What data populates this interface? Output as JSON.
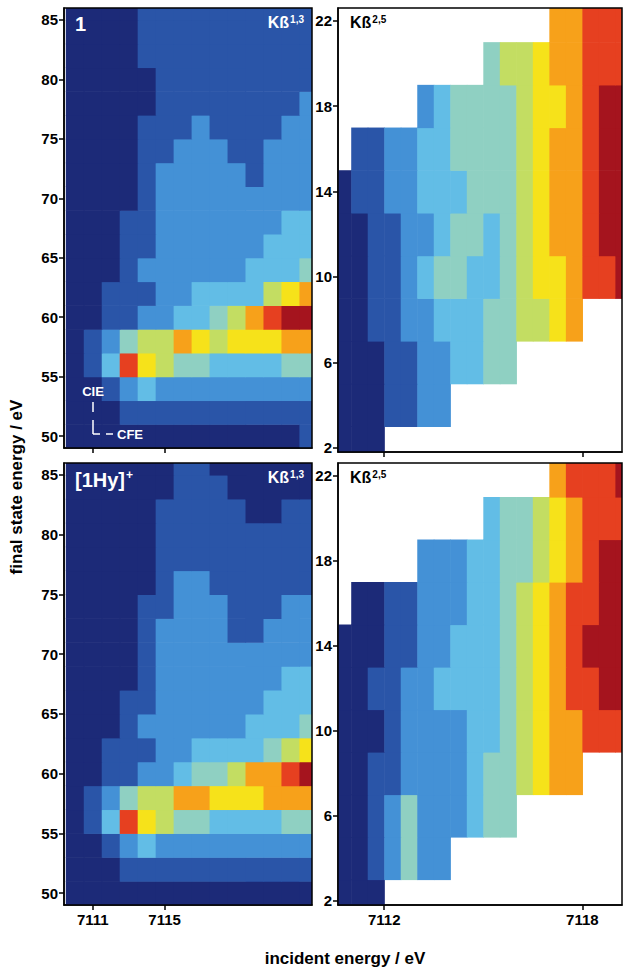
{
  "xlabel": "incident energy / eV",
  "ylabel": "final state energy / eV",
  "chart_data": [
    {
      "type": "heatmap",
      "title": {
        "text": "1"
      },
      "label": {
        "text": "Kß",
        "superscript": "1,3"
      },
      "annotations": [
        {
          "text": "CIE"
        },
        {
          "text": "CFE"
        }
      ],
      "tick_labels": "y",
      "xlim": [
        7109.4,
        7123.2
      ],
      "xticks": [
        7111,
        7115
      ],
      "ylim": [
        49,
        86
      ],
      "yticks": [
        50,
        55,
        60,
        65,
        70,
        75,
        80,
        85
      ],
      "x": [
        7110,
        7111,
        7112,
        7113,
        7114,
        7115,
        7116,
        7117,
        7118,
        7119,
        7120,
        7121,
        7122,
        7123
      ],
      "y": [
        50,
        52,
        54,
        56,
        58,
        60,
        62,
        64,
        66,
        68,
        70,
        72,
        74,
        76,
        78,
        80,
        82,
        84,
        86
      ],
      "cells": [
        [
          1,
          1,
          1,
          1,
          1,
          1,
          1,
          1,
          1,
          1,
          1,
          1,
          1,
          2
        ],
        [
          1,
          1,
          1,
          2,
          2,
          2,
          2,
          2,
          2,
          2,
          2,
          2,
          2,
          2
        ],
        [
          1,
          1,
          2,
          3,
          4,
          3,
          3,
          3,
          3,
          3,
          3,
          3,
          3,
          3
        ],
        [
          1,
          2,
          4,
          9,
          7,
          6,
          5,
          5,
          4,
          4,
          4,
          4,
          5,
          5
        ],
        [
          1,
          2,
          3,
          5,
          6,
          6,
          8,
          7,
          6,
          7,
          7,
          7,
          8,
          8
        ],
        [
          1,
          1,
          2,
          2,
          3,
          3,
          4,
          4,
          5,
          6,
          8,
          9,
          10,
          10
        ],
        [
          1,
          1,
          2,
          2,
          2,
          3,
          3,
          4,
          4,
          4,
          4,
          6,
          7,
          8
        ],
        [
          1,
          1,
          1,
          2,
          3,
          3,
          3,
          3,
          3,
          3,
          4,
          4,
          4,
          5
        ],
        [
          1,
          1,
          1,
          2,
          2,
          3,
          3,
          3,
          3,
          3,
          3,
          4,
          4,
          4
        ],
        [
          1,
          1,
          1,
          2,
          2,
          3,
          3,
          3,
          3,
          3,
          3,
          3,
          4,
          4
        ],
        [
          1,
          1,
          1,
          1,
          2,
          3,
          3,
          3,
          3,
          3,
          3,
          3,
          3,
          3
        ],
        [
          1,
          1,
          1,
          1,
          2,
          3,
          3,
          3,
          3,
          3,
          2,
          3,
          3,
          3
        ],
        [
          1,
          1,
          1,
          1,
          2,
          2,
          3,
          3,
          3,
          2,
          2,
          3,
          3,
          3
        ],
        [
          1,
          1,
          1,
          1,
          2,
          2,
          2,
          3,
          2,
          2,
          2,
          2,
          3,
          3
        ],
        [
          1,
          1,
          1,
          1,
          1,
          2,
          2,
          2,
          2,
          2,
          2,
          2,
          2,
          3
        ],
        [
          1,
          1,
          1,
          1,
          1,
          2,
          2,
          2,
          2,
          2,
          2,
          2,
          2,
          2
        ],
        [
          1,
          1,
          1,
          1,
          2,
          2,
          2,
          2,
          2,
          2,
          2,
          2,
          2,
          2
        ],
        [
          1,
          1,
          1,
          1,
          2,
          2,
          2,
          2,
          2,
          2,
          2,
          2,
          2,
          2
        ],
        [
          1,
          1,
          1,
          1,
          2,
          2,
          2,
          2,
          2,
          2,
          2,
          2,
          2,
          2
        ]
      ]
    },
    {
      "type": "heatmap",
      "label": {
        "text": "Kß",
        "superscript": "2,5"
      },
      "tick_labels": "y",
      "xlim": [
        7110.6,
        7119.2
      ],
      "xticks": [
        7112,
        7118
      ],
      "ylim": [
        1.8,
        22.6
      ],
      "yticks": [
        2,
        6,
        10,
        14,
        18,
        22
      ],
      "x": [
        7110.75,
        7111.25,
        7111.75,
        7112.25,
        7112.75,
        7113.25,
        7113.75,
        7114.25,
        7114.75,
        7115.25,
        7115.75,
        7116.25,
        7116.75,
        7117.25,
        7117.75,
        7118.25,
        7118.75,
        7119.25
      ],
      "y": [
        2,
        4,
        6,
        8,
        10,
        12,
        14,
        16,
        18,
        20,
        22
      ],
      "cells": [
        [
          1,
          1,
          1,
          null,
          null,
          null,
          null,
          null,
          null,
          null,
          null,
          null,
          null,
          null,
          null,
          null,
          null,
          null
        ],
        [
          1,
          1,
          1,
          2,
          2,
          3,
          3,
          null,
          null,
          null,
          null,
          null,
          null,
          null,
          null,
          null,
          null,
          null
        ],
        [
          1,
          1,
          1,
          2,
          2,
          3,
          3,
          4,
          4,
          5,
          5,
          null,
          null,
          null,
          null,
          null,
          null,
          null
        ],
        [
          1,
          1,
          2,
          2,
          3,
          3,
          4,
          4,
          4,
          5,
          5,
          6,
          6,
          7,
          8,
          null,
          null,
          null
        ],
        [
          1,
          1,
          2,
          2,
          3,
          4,
          5,
          5,
          4,
          4,
          5,
          6,
          7,
          7,
          8,
          9,
          9,
          10
        ],
        [
          1,
          1,
          2,
          2,
          3,
          3,
          4,
          5,
          5,
          4,
          5,
          6,
          7,
          8,
          8,
          9,
          10,
          10
        ],
        [
          1,
          2,
          2,
          3,
          3,
          4,
          4,
          4,
          5,
          5,
          5,
          6,
          7,
          8,
          8,
          9,
          10,
          10
        ],
        [
          null,
          2,
          2,
          3,
          3,
          4,
          4,
          5,
          5,
          5,
          5,
          6,
          7,
          8,
          8,
          9,
          10,
          10
        ],
        [
          null,
          null,
          null,
          null,
          null,
          3,
          4,
          5,
          5,
          5,
          5,
          6,
          7,
          7,
          8,
          9,
          10,
          10
        ],
        [
          null,
          null,
          null,
          null,
          null,
          null,
          null,
          null,
          null,
          5,
          6,
          6,
          7,
          8,
          8,
          9,
          9,
          9
        ],
        [
          null,
          null,
          null,
          null,
          null,
          null,
          null,
          null,
          null,
          null,
          null,
          null,
          null,
          8,
          8,
          9,
          9,
          9
        ]
      ]
    },
    {
      "type": "heatmap",
      "title": {
        "text": "[1Hy]",
        "superscript": "+"
      },
      "label": {
        "text": "Kß",
        "superscript": "1,3"
      },
      "xlim": [
        7109.4,
        7123.2
      ],
      "xticks": [
        7111,
        7115
      ],
      "ylim": [
        49,
        86
      ],
      "yticks": [
        50,
        55,
        60,
        65,
        70,
        75,
        80,
        85
      ],
      "x": [
        7110,
        7111,
        7112,
        7113,
        7114,
        7115,
        7116,
        7117,
        7118,
        7119,
        7120,
        7121,
        7122,
        7123
      ],
      "y": [
        50,
        52,
        54,
        56,
        58,
        60,
        62,
        64,
        66,
        68,
        70,
        72,
        74,
        76,
        78,
        80,
        82,
        84,
        86
      ],
      "cells": [
        [
          1,
          1,
          1,
          1,
          1,
          1,
          1,
          1,
          1,
          1,
          1,
          1,
          1,
          1
        ],
        [
          1,
          1,
          1,
          2,
          2,
          2,
          2,
          2,
          2,
          2,
          2,
          2,
          2,
          2
        ],
        [
          1,
          1,
          2,
          3,
          4,
          3,
          3,
          3,
          3,
          3,
          3,
          3,
          3,
          3
        ],
        [
          1,
          2,
          4,
          9,
          7,
          6,
          5,
          5,
          4,
          4,
          4,
          4,
          5,
          5
        ],
        [
          1,
          2,
          3,
          5,
          6,
          6,
          8,
          8,
          7,
          7,
          7,
          8,
          8,
          8
        ],
        [
          1,
          1,
          2,
          2,
          3,
          3,
          4,
          5,
          5,
          6,
          8,
          8,
          9,
          10
        ],
        [
          1,
          1,
          2,
          2,
          2,
          3,
          3,
          4,
          4,
          4,
          4,
          5,
          6,
          7
        ],
        [
          1,
          1,
          1,
          2,
          3,
          3,
          3,
          3,
          3,
          3,
          4,
          4,
          4,
          5
        ],
        [
          1,
          1,
          1,
          2,
          2,
          3,
          3,
          3,
          3,
          3,
          3,
          4,
          4,
          4
        ],
        [
          1,
          1,
          1,
          1,
          2,
          3,
          3,
          3,
          3,
          3,
          3,
          3,
          4,
          4
        ],
        [
          1,
          1,
          1,
          1,
          2,
          3,
          3,
          3,
          3,
          3,
          3,
          3,
          3,
          3
        ],
        [
          1,
          1,
          1,
          1,
          2,
          3,
          3,
          3,
          3,
          2,
          2,
          3,
          3,
          3
        ],
        [
          1,
          1,
          1,
          1,
          2,
          2,
          3,
          3,
          3,
          2,
          2,
          2,
          3,
          3
        ],
        [
          1,
          1,
          1,
          1,
          1,
          2,
          3,
          3,
          2,
          2,
          2,
          2,
          2,
          2
        ],
        [
          1,
          1,
          1,
          1,
          1,
          2,
          2,
          2,
          2,
          2,
          2,
          2,
          2,
          2
        ],
        [
          1,
          1,
          1,
          1,
          1,
          2,
          2,
          2,
          2,
          2,
          2,
          2,
          2,
          2
        ],
        [
          1,
          1,
          1,
          1,
          1,
          2,
          2,
          2,
          2,
          2,
          1,
          1,
          2,
          2
        ],
        [
          1,
          1,
          1,
          1,
          1,
          1,
          2,
          2,
          2,
          1,
          1,
          1,
          1,
          1
        ],
        [
          1,
          1,
          1,
          1,
          1,
          1,
          2,
          2,
          1,
          1,
          1,
          1,
          1,
          1
        ]
      ]
    },
    {
      "type": "heatmap",
      "label": {
        "text": "Kß",
        "superscript": "2,5"
      },
      "xlim": [
        7110.6,
        7119.2
      ],
      "xticks": [
        7112,
        7118
      ],
      "ylim": [
        1.8,
        22.6
      ],
      "yticks": [
        2,
        6,
        10,
        14,
        18,
        22
      ],
      "x": [
        7110.75,
        7111.25,
        7111.75,
        7112.25,
        7112.75,
        7113.25,
        7113.75,
        7114.25,
        7114.75,
        7115.25,
        7115.75,
        7116.25,
        7116.75,
        7117.25,
        7117.75,
        7118.25,
        7118.75,
        7119.25
      ],
      "y": [
        2,
        4,
        6,
        8,
        10,
        12,
        14,
        16,
        18,
        20,
        22
      ],
      "cells": [
        [
          1,
          1,
          1,
          null,
          null,
          null,
          null,
          null,
          null,
          null,
          null,
          null,
          null,
          null,
          null,
          null,
          null,
          null
        ],
        [
          1,
          1,
          2,
          3,
          5,
          3,
          3,
          null,
          null,
          null,
          null,
          null,
          null,
          null,
          null,
          null,
          null,
          null
        ],
        [
          1,
          1,
          2,
          3,
          5,
          3,
          3,
          3,
          4,
          5,
          5,
          null,
          null,
          null,
          null,
          null,
          null,
          null
        ],
        [
          1,
          1,
          2,
          2,
          3,
          3,
          3,
          3,
          4,
          5,
          5,
          6,
          7,
          8,
          8,
          null,
          null,
          null
        ],
        [
          1,
          1,
          1,
          2,
          3,
          3,
          3,
          3,
          4,
          4,
          5,
          6,
          7,
          8,
          8,
          9,
          9,
          9
        ],
        [
          1,
          1,
          2,
          2,
          3,
          3,
          4,
          4,
          4,
          4,
          5,
          6,
          7,
          8,
          9,
          9,
          10,
          10
        ],
        [
          1,
          1,
          1,
          2,
          2,
          3,
          3,
          4,
          4,
          4,
          5,
          6,
          7,
          8,
          9,
          10,
          10,
          10
        ],
        [
          null,
          1,
          1,
          2,
          2,
          3,
          3,
          3,
          4,
          4,
          5,
          6,
          7,
          8,
          9,
          9,
          10,
          10
        ],
        [
          null,
          null,
          null,
          null,
          null,
          3,
          3,
          3,
          4,
          4,
          5,
          5,
          6,
          7,
          8,
          9,
          10,
          10
        ],
        [
          null,
          null,
          null,
          null,
          null,
          null,
          null,
          null,
          null,
          4,
          5,
          5,
          6,
          7,
          8,
          9,
          9,
          9
        ],
        [
          null,
          null,
          null,
          null,
          null,
          null,
          null,
          null,
          null,
          null,
          null,
          null,
          null,
          8,
          9,
          9,
          9,
          10
        ]
      ]
    }
  ]
}
